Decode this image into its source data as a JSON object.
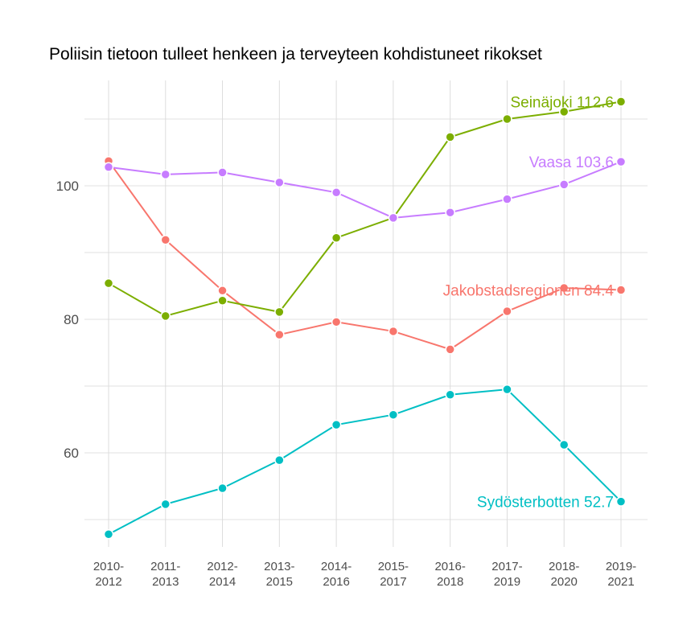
{
  "chart_data": {
    "type": "line",
    "title": "Poliisin tietoon tulleet henkeen ja terveyteen kohdistuneet rikokset",
    "xlabel": "",
    "ylabel": "",
    "categories": [
      [
        "2010-",
        "2012"
      ],
      [
        "2011-",
        "2013"
      ],
      [
        "2012-",
        "2014"
      ],
      [
        "2013-",
        "2015"
      ],
      [
        "2014-",
        "2016"
      ],
      [
        "2015-",
        "2017"
      ],
      [
        "2016-",
        "2018"
      ],
      [
        "2017-",
        "2019"
      ],
      [
        "2018-",
        "2020"
      ],
      [
        "2019-",
        "2021"
      ]
    ],
    "ylim": [
      45,
      118
    ],
    "yticks": [
      60,
      80,
      100
    ],
    "grid": true,
    "legend": "none",
    "series": [
      {
        "name": "Jakobstadsregionen",
        "color": "#F8766D",
        "end_label": "Jakobstadsregionen 84.4",
        "values": [
          103.7,
          91.9,
          84.3,
          77.7,
          79.6,
          78.2,
          75.5,
          81.2,
          84.7,
          84.4
        ]
      },
      {
        "name": "Seinäjoki",
        "color": "#7CAE00",
        "end_label": "Seinäjoki 112.6",
        "values": [
          85.4,
          80.5,
          82.8,
          81.1,
          92.2,
          95.2,
          107.3,
          110.0,
          111.1,
          112.6
        ]
      },
      {
        "name": "Sydösterbotten",
        "color": "#00BFC4",
        "end_label": "Sydösterbotten 52.7",
        "values": [
          47.8,
          52.3,
          54.7,
          58.9,
          64.2,
          65.7,
          68.7,
          69.5,
          61.2,
          52.7
        ]
      },
      {
        "name": "Vaasa",
        "color": "#C77CFF",
        "end_label": "Vaasa 103.6",
        "values": [
          102.8,
          101.7,
          102.0,
          100.5,
          99.0,
          95.2,
          96.0,
          98.0,
          100.2,
          103.6
        ]
      }
    ]
  }
}
